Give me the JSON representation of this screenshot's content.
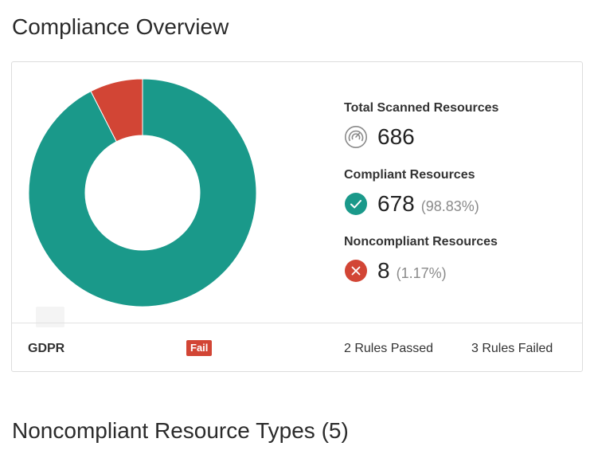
{
  "page": {
    "title": "Compliance Overview"
  },
  "donut": {
    "compliant_fraction": 0.9883,
    "noncompliant_fraction": 0.0117,
    "compliant_color": "#1a998a",
    "noncompliant_color": "#d24535"
  },
  "stats": {
    "total": {
      "label": "Total Scanned Resources",
      "value": "686",
      "icon": "gauge-icon"
    },
    "compliant": {
      "label": "Compliant Resources",
      "value": "678",
      "percent": "(98.83%)",
      "icon": "check-circle-icon",
      "color": "#1a998a"
    },
    "noncompliant": {
      "label": "Noncompliant Resources",
      "value": "8",
      "percent": "(1.17%)",
      "icon": "x-circle-icon",
      "color": "#d24535"
    }
  },
  "footer": {
    "standard": "GDPR",
    "status": "Fail",
    "rules_passed": "2 Rules Passed",
    "rules_failed": "3 Rules Failed"
  },
  "section": {
    "title": "Noncompliant Resource Types (5)"
  }
}
